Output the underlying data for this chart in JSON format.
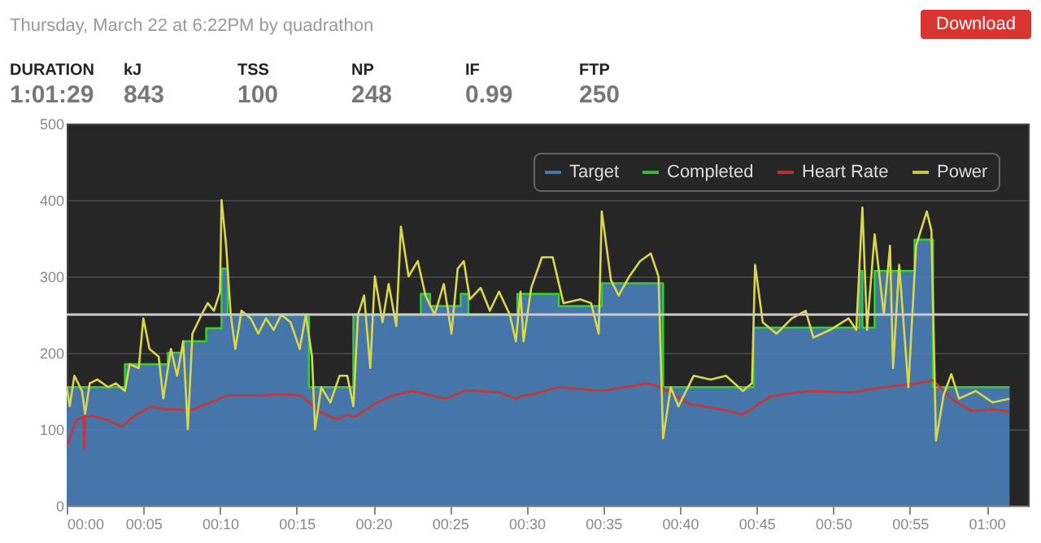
{
  "chart_data": {
    "type": "line",
    "subtitle": "Thursday, March 22 at 6:22PM by quadrathon",
    "annotations": [
      "Download",
      "DURATION",
      "1:01:29",
      "kJ",
      "843",
      "TSS",
      "100",
      "NP",
      "248",
      "IF",
      "0.99",
      "FTP",
      "250"
    ],
    "xlim": [
      0,
      62.7
    ],
    "ylim": [
      0,
      500
    ],
    "xticks": [
      {
        "value": 0,
        "label": "00:00"
      },
      {
        "value": 5,
        "label": "00:05"
      },
      {
        "value": 10,
        "label": "00:10"
      },
      {
        "value": 15,
        "label": "00:15"
      },
      {
        "value": 20,
        "label": "00:20"
      },
      {
        "value": 25,
        "label": "00:25"
      },
      {
        "value": 30,
        "label": "00:30"
      },
      {
        "value": 35,
        "label": "00:35"
      },
      {
        "value": 40,
        "label": "00:40"
      },
      {
        "value": 45,
        "label": "00:45"
      },
      {
        "value": 50,
        "label": "00:50"
      },
      {
        "value": 55,
        "label": "00:55"
      },
      {
        "value": 60,
        "label": "01:00"
      }
    ],
    "yticks": [
      0,
      100,
      200,
      300,
      400,
      500
    ],
    "grid": "y",
    "legend": "top right",
    "ref_lines": [
      {
        "axis": "y",
        "value": 250,
        "color": "#cccccc"
      }
    ],
    "series": [
      {
        "name": "Target",
        "type": "area",
        "color": "#4a80b8",
        "x": [
          0,
          3.8,
          3.8,
          6.6,
          6.6,
          7.6,
          7.6,
          9.1,
          9.1,
          10.1,
          10.1,
          10.5,
          10.5,
          15.8,
          15.8,
          18.7,
          18.7,
          23.1,
          23.1,
          23.7,
          23.7,
          25.7,
          25.7,
          26.2,
          26.2,
          29.4,
          29.4,
          32.1,
          32.1,
          34.9,
          34.9,
          38.9,
          38.9,
          44.8,
          44.8,
          51.7,
          51.7,
          51.9,
          51.9,
          52.7,
          52.7,
          55.3,
          55.3,
          56.5,
          56.5,
          61.5
        ],
        "values": [
          155,
          155,
          185,
          185,
          200,
          200,
          215,
          215,
          232,
          232,
          310,
          310,
          250,
          250,
          155,
          155,
          250,
          250,
          277,
          277,
          261,
          261,
          277,
          277,
          250,
          250,
          277,
          277,
          261,
          261,
          291,
          291,
          155,
          155,
          233,
          233,
          307,
          307,
          233,
          233,
          307,
          307,
          348,
          348,
          155,
          155
        ]
      },
      {
        "name": "Completed",
        "type": "line",
        "color": "#33cc33",
        "x": [
          0,
          3.8,
          3.8,
          6.6,
          6.6,
          7.6,
          7.6,
          9.1,
          9.1,
          10.1,
          10.1,
          10.5,
          10.5,
          15.8,
          15.8,
          18.7,
          18.7,
          23.1,
          23.1,
          23.7,
          23.7,
          25.7,
          25.7,
          26.2,
          26.2,
          29.4,
          29.4,
          32.1,
          32.1,
          34.9,
          34.9,
          38.9,
          38.9,
          44.8,
          44.8,
          51.7,
          51.7,
          51.9,
          51.9,
          52.7,
          52.7,
          55.3,
          55.3,
          56.5,
          56.5,
          61.5
        ],
        "values": [
          155,
          155,
          185,
          185,
          200,
          200,
          215,
          215,
          232,
          232,
          310,
          310,
          250,
          250,
          155,
          155,
          250,
          250,
          277,
          277,
          261,
          261,
          277,
          277,
          250,
          250,
          277,
          277,
          261,
          261,
          291,
          291,
          155,
          155,
          233,
          233,
          307,
          307,
          233,
          233,
          307,
          307,
          348,
          348,
          155,
          155
        ]
      },
      {
        "name": "Heart Rate",
        "type": "line",
        "color": "#cc3333",
        "x": [
          0.07,
          0.6,
          1.1,
          1.15,
          1.2,
          1.8,
          2.7,
          3.6,
          4.1,
          5.5,
          6.3,
          7.3,
          8.0,
          9.1,
          10.5,
          12.6,
          14.0,
          15.3,
          16.5,
          17.6,
          18.3,
          18.8,
          20.1,
          21.1,
          22.5,
          24.7,
          26.1,
          28.2,
          29.3,
          29.6,
          30.5,
          32.1,
          34.9,
          37.8,
          38.8,
          40.6,
          42.7,
          44.1,
          45.9,
          48.4,
          51.2,
          53.3,
          55.5,
          56.5,
          57.9,
          59.0,
          60.4,
          61.5
        ],
        "values": [
          80,
          112,
          116,
          75,
          117,
          117,
          112,
          103,
          113,
          130,
          126,
          126,
          124,
          133,
          144,
          144,
          146,
          144,
          123,
          113,
          119,
          116,
          133,
          143,
          150,
          140,
          151,
          148,
          140,
          143,
          146,
          155,
          150,
          160,
          155,
          133,
          126,
          119,
          143,
          150,
          148,
          155,
          160,
          164,
          137,
          124,
          126,
          123
        ]
      },
      {
        "name": "Power",
        "type": "line",
        "color": "#d8d84a",
        "x": [
          0.0,
          0.2,
          0.5,
          1.0,
          1.2,
          1.5,
          2.0,
          2.7,
          3.2,
          3.8,
          4.1,
          4.7,
          5.0,
          5.4,
          6.0,
          6.3,
          6.8,
          7.2,
          7.6,
          7.9,
          8.2,
          8.8,
          9.2,
          9.6,
          10.0,
          10.1,
          10.4,
          10.7,
          11.0,
          11.4,
          12.0,
          12.5,
          13.0,
          13.5,
          14.0,
          14.6,
          15.2,
          15.6,
          16.0,
          16.2,
          16.6,
          17.2,
          17.8,
          18.3,
          18.7,
          19.0,
          19.4,
          19.8,
          20.1,
          20.6,
          21.0,
          21.5,
          21.8,
          22.3,
          22.9,
          23.4,
          24.0,
          24.6,
          25.1,
          25.5,
          25.9,
          26.3,
          27.0,
          27.6,
          28.2,
          28.9,
          29.3,
          29.6,
          29.8,
          30.3,
          31.0,
          31.7,
          32.4,
          33.5,
          34.2,
          34.7,
          34.9,
          35.5,
          36.0,
          36.7,
          37.4,
          38.1,
          38.6,
          38.9,
          39.4,
          39.9,
          40.9,
          42.0,
          43.0,
          44.1,
          44.7,
          44.9,
          45.4,
          46.3,
          47.3,
          48.2,
          48.7,
          49.8,
          51.0,
          51.5,
          51.9,
          52.2,
          52.7,
          53.3,
          53.7,
          53.9,
          54.3,
          54.9,
          55.4,
          56.1,
          56.4,
          56.7,
          57.2,
          57.7,
          58.2,
          59.3,
          60.4,
          61.5
        ],
        "values": [
          155,
          130,
          170,
          150,
          120,
          160,
          165,
          155,
          160,
          150,
          185,
          180,
          245,
          205,
          195,
          140,
          205,
          170,
          215,
          100,
          225,
          250,
          265,
          255,
          280,
          400,
          340,
          250,
          205,
          255,
          245,
          225,
          245,
          230,
          250,
          240,
          205,
          250,
          195,
          100,
          155,
          135,
          170,
          170,
          130,
          250,
          275,
          180,
          300,
          240,
          290,
          235,
          365,
          300,
          320,
          275,
          250,
          290,
          225,
          310,
          320,
          270,
          285,
          255,
          280,
          250,
          215,
          280,
          215,
          285,
          325,
          325,
          265,
          270,
          265,
          225,
          385,
          295,
          275,
          300,
          320,
          330,
          300,
          88,
          155,
          130,
          170,
          165,
          170,
          150,
          160,
          315,
          240,
          225,
          245,
          255,
          220,
          230,
          245,
          230,
          390,
          230,
          355,
          250,
          340,
          180,
          315,
          155,
          340,
          385,
          360,
          85,
          145,
          172,
          140,
          150,
          135,
          140
        ]
      }
    ]
  }
}
